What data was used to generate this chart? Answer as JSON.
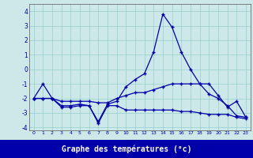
{
  "title": "Graphe des températures (°c)",
  "background_color": "#cce8e8",
  "grid_color": "#99cccc",
  "line_color": "#0000aa",
  "xlim": [
    -0.5,
    23.5
  ],
  "ylim": [
    -4.2,
    4.5
  ],
  "yticks": [
    -4,
    -3,
    -2,
    -1,
    0,
    1,
    2,
    3,
    4
  ],
  "xticks": [
    0,
    1,
    2,
    3,
    4,
    5,
    6,
    7,
    8,
    9,
    10,
    11,
    12,
    13,
    14,
    15,
    16,
    17,
    18,
    19,
    20,
    21,
    22,
    23
  ],
  "series_high": [
    -2,
    -1,
    -2,
    -2.5,
    -2.5,
    -2.4,
    -2.5,
    -3.6,
    -2.4,
    -2.2,
    -1.2,
    -0.7,
    -0.3,
    1.2,
    3.8,
    2.9,
    1.2,
    0.0,
    -1.0,
    -1.0,
    -1.8,
    -2.6,
    -2.2,
    -3.3
  ],
  "series_mid": [
    -2,
    -2,
    -2,
    -2.2,
    -2.2,
    -2.2,
    -2.2,
    -2.3,
    -2.3,
    -2.0,
    -1.8,
    -1.6,
    -1.6,
    -1.4,
    -1.2,
    -1.0,
    -1.0,
    -1.0,
    -1.0,
    -1.7,
    -2.0,
    -2.5,
    -3.2,
    -3.3
  ],
  "series_low": [
    -2,
    -2,
    -2,
    -2.6,
    -2.6,
    -2.5,
    -2.5,
    -3.7,
    -2.5,
    -2.5,
    -2.8,
    -2.8,
    -2.8,
    -2.8,
    -2.8,
    -2.8,
    -2.9,
    -2.9,
    -3.0,
    -3.1,
    -3.1,
    -3.1,
    -3.3,
    -3.4
  ]
}
